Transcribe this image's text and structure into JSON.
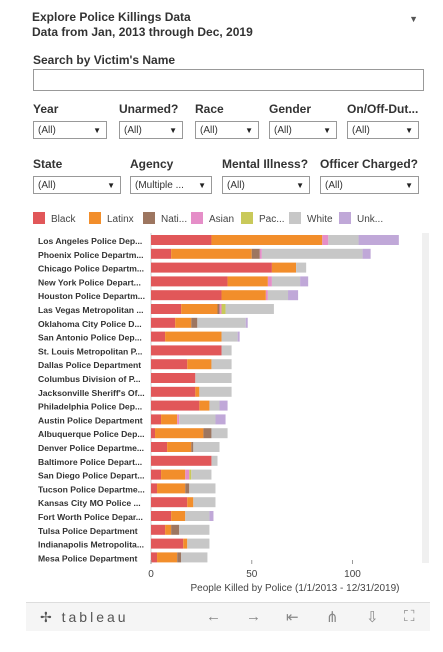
{
  "header": {
    "title_line1": "Explore Police Killings Data",
    "title_line2": "Data from Jan, 2013 through Dec, 2019"
  },
  "search": {
    "label": "Search by Victim's Name",
    "value": ""
  },
  "filters": [
    {
      "label": "Year",
      "value": "(All)"
    },
    {
      "label": "Unarmed?",
      "value": "(All)"
    },
    {
      "label": "Race",
      "value": "(All)"
    },
    {
      "label": "Gender",
      "value": "(All)"
    },
    {
      "label": "On/Off-Dut...",
      "value": "(All)"
    },
    {
      "label": "State",
      "value": "(All)"
    },
    {
      "label": "Agency",
      "value": "(Multiple ..."
    },
    {
      "label": "Mental Illness?",
      "value": "(All)"
    },
    {
      "label": "Officer Charged?",
      "value": "(All)"
    }
  ],
  "colors": {
    "black": "#e15759",
    "latinx": "#f28e2b",
    "native": "#9d7660",
    "asian": "#e58ec8",
    "pacific": "#c9c95a",
    "white": "#c7c7c7",
    "unknown": "#c0a8d8"
  },
  "legend": [
    {
      "label": "Black",
      "color_key": "black"
    },
    {
      "label": "Latinx",
      "color_key": "latinx"
    },
    {
      "label": "Nati...",
      "color_key": "native"
    },
    {
      "label": "Asian",
      "color_key": "asian"
    },
    {
      "label": "Pac...",
      "color_key": "pacific"
    },
    {
      "label": "White",
      "color_key": "white"
    },
    {
      "label": "Unk...",
      "color_key": "unknown"
    }
  ],
  "chart_data": {
    "type": "bar",
    "orientation": "horizontal",
    "stacked": true,
    "xlabel": "People Killed by Police (1/1/2013 - 12/31/2019)",
    "x_ticks": [
      0,
      50,
      100
    ],
    "xlim": [
      0,
      133
    ],
    "series_order": [
      "black",
      "latinx",
      "native",
      "asian",
      "pacific",
      "white",
      "unknown"
    ],
    "categories": [
      "Los Angeles Police Dep...",
      "Phoenix Police Departm...",
      "Chicago Police Departm...",
      "New York Police Depart...",
      "Houston Police Departm...",
      "Las Vegas Metropolitan ...",
      "Oklahoma City Police D...",
      "San Antonio Police Dep...",
      "St. Louis Metropolitan P...",
      "Dallas Police Department",
      "Columbus Division of P...",
      "Jacksonville Sheriff's Of...",
      "Philadelphia Police Dep...",
      "Austin Police Department",
      "Albuquerque Police Dep...",
      "Denver Police Departme...",
      "Baltimore Police Depart...",
      "San Diego Police Depart...",
      "Tucson Police Departme...",
      "Kansas City MO Police ...",
      "Fort Worth Police Depar...",
      "Tulsa Police Department",
      "Indianapolis Metropolita...",
      "Mesa Police Department"
    ],
    "values": [
      {
        "black": 30,
        "latinx": 55,
        "native": 0,
        "asian": 3,
        "pacific": 0,
        "white": 15,
        "unknown": 20
      },
      {
        "black": 10,
        "latinx": 40,
        "native": 4,
        "asian": 1,
        "pacific": 0,
        "white": 50,
        "unknown": 4
      },
      {
        "black": 60,
        "latinx": 12,
        "native": 0,
        "asian": 0,
        "pacific": 0,
        "white": 5,
        "unknown": 0
      },
      {
        "black": 38,
        "latinx": 20,
        "native": 0,
        "asian": 2,
        "pacific": 0,
        "white": 14,
        "unknown": 4
      },
      {
        "black": 35,
        "latinx": 22,
        "native": 0,
        "asian": 1,
        "pacific": 0,
        "white": 10,
        "unknown": 5
      },
      {
        "black": 15,
        "latinx": 18,
        "native": 1,
        "asian": 1,
        "pacific": 2,
        "white": 24,
        "unknown": 0
      },
      {
        "black": 12,
        "latinx": 8,
        "native": 3,
        "asian": 0,
        "pacific": 0,
        "white": 24,
        "unknown": 1
      },
      {
        "black": 7,
        "latinx": 28,
        "native": 0,
        "asian": 0,
        "pacific": 0,
        "white": 8,
        "unknown": 1
      },
      {
        "black": 35,
        "latinx": 0,
        "native": 0,
        "asian": 0,
        "pacific": 0,
        "white": 5,
        "unknown": 0
      },
      {
        "black": 18,
        "latinx": 12,
        "native": 0,
        "asian": 0,
        "pacific": 0,
        "white": 10,
        "unknown": 0
      },
      {
        "black": 22,
        "latinx": 0,
        "native": 0,
        "asian": 0,
        "pacific": 0,
        "white": 18,
        "unknown": 0
      },
      {
        "black": 22,
        "latinx": 2,
        "native": 0,
        "asian": 0,
        "pacific": 0,
        "white": 16,
        "unknown": 0
      },
      {
        "black": 24,
        "latinx": 5,
        "native": 0,
        "asian": 0,
        "pacific": 0,
        "white": 5,
        "unknown": 4
      },
      {
        "black": 5,
        "latinx": 8,
        "native": 0,
        "asian": 1,
        "pacific": 0,
        "white": 18,
        "unknown": 5
      },
      {
        "black": 2,
        "latinx": 24,
        "native": 4,
        "asian": 0,
        "pacific": 0,
        "white": 8,
        "unknown": 0
      },
      {
        "black": 8,
        "latinx": 12,
        "native": 1,
        "asian": 0,
        "pacific": 0,
        "white": 13,
        "unknown": 0
      },
      {
        "black": 30,
        "latinx": 0,
        "native": 0,
        "asian": 0,
        "pacific": 0,
        "white": 3,
        "unknown": 0
      },
      {
        "black": 5,
        "latinx": 12,
        "native": 0,
        "asian": 2,
        "pacific": 1,
        "white": 10,
        "unknown": 0
      },
      {
        "black": 3,
        "latinx": 14,
        "native": 2,
        "asian": 0,
        "pacific": 0,
        "white": 13,
        "unknown": 0
      },
      {
        "black": 18,
        "latinx": 3,
        "native": 0,
        "asian": 0,
        "pacific": 0,
        "white": 11,
        "unknown": 0
      },
      {
        "black": 10,
        "latinx": 7,
        "native": 0,
        "asian": 0,
        "pacific": 0,
        "white": 12,
        "unknown": 2
      },
      {
        "black": 7,
        "latinx": 3,
        "native": 4,
        "asian": 0,
        "pacific": 0,
        "white": 15,
        "unknown": 0
      },
      {
        "black": 16,
        "latinx": 2,
        "native": 0,
        "asian": 0,
        "pacific": 0,
        "white": 11,
        "unknown": 0
      },
      {
        "black": 3,
        "latinx": 10,
        "native": 2,
        "asian": 0,
        "pacific": 0,
        "white": 13,
        "unknown": 0
      }
    ]
  },
  "toolbar": {
    "logo": "tableau",
    "buttons": [
      {
        "name": "undo-icon",
        "glyph": "←"
      },
      {
        "name": "redo-icon",
        "glyph": "→"
      },
      {
        "name": "revert-icon",
        "glyph": "⇤"
      },
      {
        "name": "share-icon",
        "glyph": "⋔"
      },
      {
        "name": "download-icon",
        "glyph": "⇩"
      },
      {
        "name": "fullscreen-icon",
        "glyph": "⛶"
      }
    ]
  }
}
